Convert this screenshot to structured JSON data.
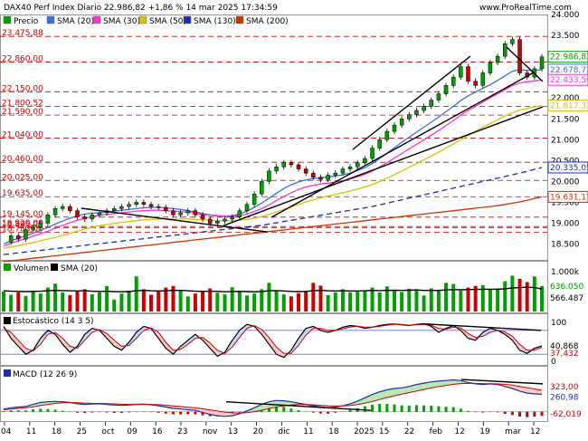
{
  "header": {
    "title": "DAX40 Perf Index Diario 22.986,82 +1,86 % 14 mar 2025 17:34:59",
    "site": "www.ProRealTime.com"
  },
  "colors": {
    "price_up": "#00a000",
    "price_down": "#cc0000",
    "sma20": "#3a6fd8",
    "sma30": "#ff33cc",
    "sma50": "#d6c400",
    "sma130": "#1a2faa",
    "sma200": "#cc3300",
    "grid": "#cc0000"
  },
  "x_axis": {
    "labels": [
      "04",
      "11",
      "18",
      "25",
      "oct",
      "09",
      "16",
      "23",
      "nov",
      "13",
      "20",
      "dic",
      "11",
      "18",
      "2025",
      "15",
      "22",
      "feb",
      "12",
      "19",
      "mar",
      "12"
    ]
  },
  "chart_data": [
    {
      "type": "line",
      "name": "price-panel",
      "legend": [
        "Precio",
        "SMA (20)",
        "SMA (30)",
        "SMA (50)",
        "SMA (130)",
        "SMA (200)"
      ],
      "y_ticks": [
        "24.000",
        "23.500",
        "23.000",
        "22.500",
        "22.000",
        "21.500",
        "21.000",
        "20.500",
        "20.000",
        "19.500",
        "19.000",
        "18.500"
      ],
      "y_range": [
        18100,
        24000
      ],
      "levels": [
        "23.475,88",
        "22.860,00",
        "22.150,00",
        "21.800,52",
        "21.590,00",
        "21.040,00",
        "20.460,00",
        "20.025,00",
        "19.635,00",
        "19.145,00",
        "18.920,00",
        "18.895,00",
        "18.783,00"
      ],
      "last_values": {
        "price": "22.986,82",
        "sma20": "22.678,72",
        "sma30": "22.433,56",
        "sma50": "21.817,31",
        "sma130": "20.335,05",
        "sma200": "19.631,17"
      },
      "series": [
        {
          "name": "Precio",
          "values": [
            18550,
            18700,
            18620,
            18850,
            18900,
            19000,
            19200,
            19350,
            19400,
            19300,
            19150,
            19100,
            19200,
            19250,
            19300,
            19350,
            19400,
            19450,
            19500,
            19450,
            19400,
            19380,
            19300,
            19200,
            19250,
            19300,
            19200,
            19100,
            19000,
            19050,
            19100,
            19150,
            19300,
            19450,
            19700,
            20000,
            20250,
            20350,
            20450,
            20400,
            20300,
            20200,
            20100,
            20050,
            20150,
            20200,
            20300,
            20350,
            20450,
            20550,
            20800,
            21000,
            21200,
            21350,
            21500,
            21600,
            21700,
            21800,
            21950,
            22100,
            22300,
            22500,
            22750,
            22400,
            22300,
            22600,
            22850,
            23000,
            23300,
            23400,
            22600,
            22500,
            22700,
            22986
          ]
        },
        {
          "name": "SMA (20)",
          "values": [
            18500,
            18580,
            18640,
            18700,
            18760,
            18830,
            18900,
            18980,
            19050,
            19120,
            19180,
            19220,
            19240,
            19250,
            19270,
            19290,
            19310,
            19330,
            19350,
            19370,
            19380,
            19380,
            19370,
            19350,
            19330,
            19300,
            19270,
            19230,
            19200,
            19180,
            19170,
            19180,
            19220,
            19290,
            19380,
            19480,
            19600,
            19720,
            19830,
            19920,
            19990,
            20040,
            20070,
            20090,
            20110,
            20130,
            20160,
            20200,
            20260,
            20330,
            20430,
            20550,
            20680,
            20810,
            20940,
            21060,
            21180,
            21300,
            21420,
            21540,
            21670,
            21800,
            21940,
            22050,
            22140,
            22230,
            22320,
            22420,
            22530,
            22640,
            22680,
            22660,
            22660,
            22678
          ]
        },
        {
          "name": "SMA (30)",
          "values": [
            18450,
            18520,
            18580,
            18630,
            18690,
            18750,
            18810,
            18880,
            18950,
            19010,
            19070,
            19120,
            19160,
            19190,
            19210,
            19230,
            19250,
            19270,
            19290,
            19300,
            19310,
            19310,
            19300,
            19290,
            19280,
            19260,
            19240,
            19210,
            19190,
            19170,
            19160,
            19160,
            19180,
            19220,
            19280,
            19350,
            19440,
            19540,
            19640,
            19730,
            19810,
            19870,
            19910,
            19940,
            19960,
            19990,
            20020,
            20060,
            20110,
            20170,
            20250,
            20350,
            20450,
            20560,
            20670,
            20780,
            20890,
            21000,
            21110,
            21220,
            21340,
            21460,
            21590,
            21700,
            21800,
            21900,
            22000,
            22100,
            22200,
            22300,
            22360,
            22390,
            22410,
            22433
          ]
        },
        {
          "name": "SMA (50)",
          "values": [
            18400,
            18430,
            18460,
            18500,
            18540,
            18580,
            18620,
            18660,
            18710,
            18760,
            18810,
            18860,
            18900,
            18940,
            18970,
            19000,
            19020,
            19040,
            19060,
            19080,
            19090,
            19100,
            19100,
            19100,
            19100,
            19100,
            19090,
            19080,
            19070,
            19060,
            19060,
            19060,
            19070,
            19090,
            19120,
            19160,
            19210,
            19270,
            19330,
            19390,
            19450,
            19510,
            19560,
            19610,
            19650,
            19690,
            19730,
            19770,
            19820,
            19870,
            19930,
            20000,
            20080,
            20160,
            20250,
            20340,
            20430,
            20520,
            20610,
            20700,
            20800,
            20900,
            21000,
            21100,
            21200,
            21300,
            21390,
            21480,
            21570,
            21650,
            21710,
            21750,
            21790,
            21817
          ]
        },
        {
          "name": "SMA (130)",
          "values": [
            18250,
            18270,
            18290,
            18310,
            18330,
            18350,
            18370,
            18390,
            18410,
            18430,
            18450,
            18470,
            18490,
            18510,
            18530,
            18550,
            18570,
            18590,
            18610,
            18630,
            18650,
            18670,
            18690,
            18710,
            18730,
            18750,
            18770,
            18790,
            18810,
            18830,
            18850,
            18870,
            18890,
            18910,
            18930,
            18950,
            18980,
            19010,
            19040,
            19070,
            19100,
            19130,
            19160,
            19190,
            19220,
            19250,
            19280,
            19310,
            19340,
            19370,
            19400,
            19440,
            19480,
            19520,
            19560,
            19600,
            19640,
            19680,
            19720,
            19760,
            19800,
            19840,
            19880,
            19920,
            19960,
            20000,
            20040,
            20080,
            20120,
            20160,
            20200,
            20240,
            20290,
            20335
          ]
        },
        {
          "name": "SMA (200)",
          "values": [
            18080,
            18100,
            18120,
            18140,
            18160,
            18180,
            18200,
            18220,
            18240,
            18260,
            18280,
            18300,
            18320,
            18340,
            18360,
            18380,
            18400,
            18420,
            18440,
            18460,
            18480,
            18500,
            18520,
            18540,
            18560,
            18580,
            18600,
            18620,
            18640,
            18660,
            18680,
            18700,
            18720,
            18740,
            18760,
            18780,
            18800,
            18820,
            18840,
            18860,
            18880,
            18900,
            18920,
            18940,
            18960,
            18980,
            19000,
            19020,
            19040,
            19060,
            19080,
            19100,
            19120,
            19140,
            19160,
            19180,
            19200,
            19220,
            19240,
            19260,
            19280,
            19300,
            19320,
            19340,
            19360,
            19380,
            19400,
            19420,
            19450,
            19480,
            19510,
            19550,
            19590,
            19631
          ]
        }
      ]
    },
    {
      "type": "bar",
      "name": "volume-panel",
      "legend": [
        "Volumen",
        "SMA (20)"
      ],
      "y_ticks": [
        "1.000k"
      ],
      "last_values": {
        "volume": "636.050",
        "sma20": "566.487"
      },
      "values": [
        500,
        420,
        480,
        390,
        520,
        450,
        600,
        700,
        480,
        410,
        520,
        560,
        430,
        480,
        640,
        300,
        450,
        520,
        880,
        560,
        420,
        500,
        600,
        640,
        540,
        380,
        450,
        520,
        580,
        470,
        430,
        610,
        520,
        400,
        450,
        560,
        720,
        510,
        430,
        380,
        460,
        520,
        720,
        650,
        410,
        480,
        560,
        480,
        520,
        520,
        600,
        480,
        630,
        540,
        490,
        570,
        560,
        400,
        580,
        520,
        720,
        690,
        520,
        600,
        640,
        660,
        570,
        580,
        760,
        900,
        820,
        740,
        880,
        636
      ],
      "sma": [
        520,
        510,
        505,
        500,
        505,
        510,
        520,
        530,
        525,
        520,
        515,
        520,
        510,
        505,
        510,
        500,
        495,
        500,
        520,
        530,
        520,
        515,
        520,
        530,
        530,
        520,
        510,
        505,
        510,
        505,
        495,
        500,
        505,
        500,
        495,
        500,
        520,
        525,
        515,
        505,
        500,
        505,
        520,
        530,
        520,
        515,
        520,
        515,
        515,
        520,
        530,
        525,
        530,
        535,
        530,
        535,
        540,
        530,
        530,
        530,
        540,
        550,
        545,
        550,
        555,
        560,
        560,
        560,
        570,
        590,
        600,
        610,
        600,
        566
      ]
    },
    {
      "type": "line",
      "name": "stochastic-panel",
      "legend": [
        "Estocástico (14 3 5)"
      ],
      "y_ticks": [
        "100",
        "0"
      ],
      "last_values": {
        "k": "40,868",
        "d": "37,432"
      },
      "k": [
        90,
        60,
        40,
        20,
        30,
        60,
        80,
        70,
        45,
        25,
        40,
        70,
        85,
        80,
        60,
        40,
        30,
        50,
        75,
        90,
        85,
        60,
        35,
        20,
        40,
        55,
        70,
        55,
        35,
        15,
        25,
        55,
        80,
        95,
        90,
        70,
        45,
        20,
        12,
        30,
        60,
        85,
        90,
        80,
        75,
        80,
        88,
        92,
        90,
        85,
        88,
        92,
        95,
        96,
        94,
        92,
        95,
        97,
        90,
        75,
        85,
        92,
        80,
        60,
        55,
        75,
        85,
        80,
        70,
        55,
        30,
        22,
        35,
        41
      ],
      "d": [
        85,
        75,
        55,
        35,
        28,
        45,
        70,
        75,
        60,
        40,
        35,
        55,
        75,
        82,
        72,
        55,
        40,
        42,
        60,
        80,
        86,
        75,
        50,
        30,
        32,
        45,
        60,
        62,
        48,
        30,
        22,
        38,
        62,
        85,
        92,
        82,
        62,
        38,
        22,
        22,
        42,
        68,
        85,
        85,
        80,
        80,
        84,
        88,
        90,
        88,
        88,
        90,
        93,
        95,
        95,
        93,
        94,
        95,
        93,
        85,
        83,
        88,
        86,
        72,
        62,
        65,
        75,
        80,
        76,
        65,
        45,
        30,
        30,
        37
      ]
    },
    {
      "type": "bar",
      "name": "macd-panel",
      "legend": [
        "MACD (12 26 9)"
      ],
      "last_values": {
        "signal": "323,00",
        "macd": "260,98",
        "hist": "-62,019"
      },
      "macd": [
        40,
        60,
        70,
        80,
        110,
        140,
        150,
        155,
        150,
        140,
        120,
        110,
        115,
        120,
        110,
        100,
        95,
        100,
        110,
        115,
        105,
        90,
        70,
        50,
        40,
        30,
        20,
        -10,
        -40,
        -60,
        -70,
        -60,
        -30,
        10,
        60,
        110,
        150,
        170,
        165,
        150,
        130,
        110,
        90,
        70,
        60,
        70,
        90,
        120,
        160,
        210,
        260,
        300,
        330,
        350,
        360,
        380,
        410,
        430,
        450,
        460,
        470,
        480,
        470,
        440,
        420,
        410,
        420,
        410,
        380,
        350,
        310,
        280,
        270,
        261
      ],
      "signal": [
        30,
        40,
        50,
        60,
        75,
        95,
        110,
        125,
        135,
        138,
        135,
        130,
        127,
        125,
        122,
        118,
        113,
        110,
        110,
        111,
        110,
        106,
        98,
        88,
        78,
        68,
        58,
        44,
        27,
        10,
        -6,
        -17,
        -20,
        -14,
        1,
        22,
        48,
        72,
        90,
        102,
        108,
        108,
        104,
        97,
        90,
        86,
        87,
        94,
        107,
        128,
        154,
        183,
        213,
        240,
        264,
        287,
        311,
        335,
        358,
        378,
        396,
        413,
        424,
        427,
        426,
        423,
        422,
        420,
        412,
        400,
        382,
        362,
        343,
        323
      ]
    }
  ]
}
